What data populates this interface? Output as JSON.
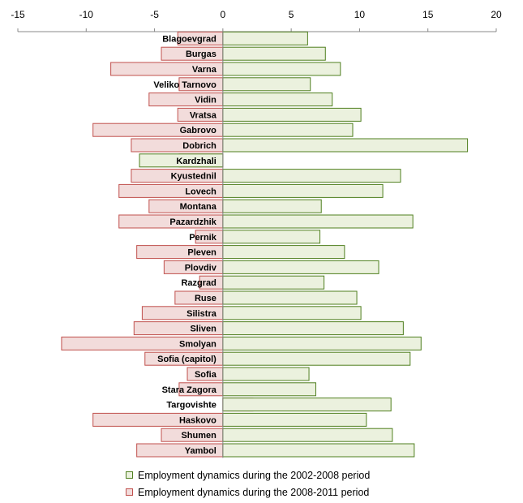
{
  "chart_data": {
    "type": "bar",
    "orientation": "horizontal",
    "xlim": [
      -15,
      20
    ],
    "x_ticks": [
      "-15",
      "-10",
      "-5",
      "0",
      "5",
      "10",
      "15",
      "20"
    ],
    "categories": [
      "Blagoevgrad",
      "Burgas",
      "Varna",
      "Veliko Tarnovo",
      "Vidin",
      "Vratsa",
      "Gabrovo",
      "Dobrich",
      "Kardzhali",
      "Kyustednil",
      "Lovech",
      "Montana",
      "Pazardzhik",
      "Pernik",
      "Pleven",
      "Plovdiv",
      "Razgrad",
      "Ruse",
      "Silistra",
      "Sliven",
      "Smolyan",
      "Sofia (capitol)",
      "Sofia",
      "Stara Zagora",
      "Targovishte",
      "Haskovo",
      "Shumen",
      "Yambol"
    ],
    "series": [
      {
        "name": "Employment dynamics during the 2002-2008  period",
        "color": "#ebf1de",
        "stroke": "#4f7f1f",
        "values": [
          6.2,
          7.5,
          8.6,
          6.4,
          8.0,
          10.1,
          9.5,
          17.9,
          -6.1,
          13.0,
          11.7,
          7.2,
          13.9,
          7.1,
          8.9,
          11.4,
          7.4,
          9.8,
          10.1,
          13.2,
          14.5,
          13.7,
          6.3,
          6.8,
          12.3,
          10.5,
          12.4,
          14.0
        ]
      },
      {
        "name": "Employment dynamics during the 2008-2011  period",
        "color": "#f2dcdb",
        "stroke": "#c0504d",
        "values": [
          -3.3,
          -4.5,
          -8.2,
          -3.2,
          -5.4,
          -3.3,
          -9.5,
          -6.7,
          -3.2,
          -6.7,
          -7.6,
          -5.4,
          -7.6,
          -2.0,
          -6.3,
          -4.3,
          -1.7,
          -3.5,
          -5.9,
          -6.5,
          -11.8,
          -5.7,
          -2.6,
          -3.2,
          2.2,
          -9.5,
          -4.5,
          -6.3
        ]
      }
    ],
    "grid": false,
    "legend_position": "bottom"
  },
  "legend": {
    "items": [
      {
        "label": "Employment dynamics during the 2002-2008  period",
        "color": "#ebf1de",
        "stroke": "#4f7f1f"
      },
      {
        "label": "Employment dynamics during the 2008-2011  period",
        "color": "#f2dcdb",
        "stroke": "#c0504d"
      }
    ]
  }
}
